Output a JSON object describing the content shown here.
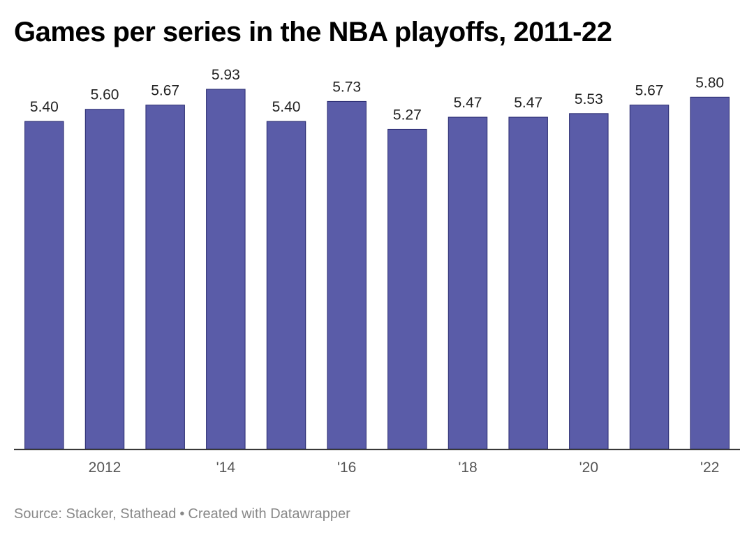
{
  "chart_data": {
    "type": "bar",
    "title": "Games per series in the NBA playoffs, 2011-22",
    "categories": [
      "2011",
      "2012",
      "2013",
      "2014",
      "2015",
      "2016",
      "2017",
      "2018",
      "2019",
      "2020",
      "2021",
      "2022"
    ],
    "values": [
      5.4,
      5.6,
      5.67,
      5.93,
      5.4,
      5.73,
      5.27,
      5.47,
      5.47,
      5.53,
      5.67,
      5.8
    ],
    "value_labels": [
      "5.40",
      "5.60",
      "5.67",
      "5.93",
      "5.40",
      "5.73",
      "5.27",
      "5.47",
      "5.47",
      "5.53",
      "5.67",
      "5.80"
    ],
    "x_ticks": [
      {
        "category": "2012",
        "label": "2012"
      },
      {
        "category": "2014",
        "label": "'14"
      },
      {
        "category": "2016",
        "label": "'16"
      },
      {
        "category": "2018",
        "label": "'18"
      },
      {
        "category": "2020",
        "label": "'20"
      },
      {
        "category": "2022",
        "label": "'22"
      }
    ],
    "ylim": [
      0,
      5.93
    ],
    "grid": false,
    "bar_color": "#5a5ca8",
    "xlabel": "",
    "ylabel": ""
  },
  "footer": {
    "source": "Source: Stacker, Stathead",
    "separator": "•",
    "credit": "Created with Datawrapper"
  }
}
